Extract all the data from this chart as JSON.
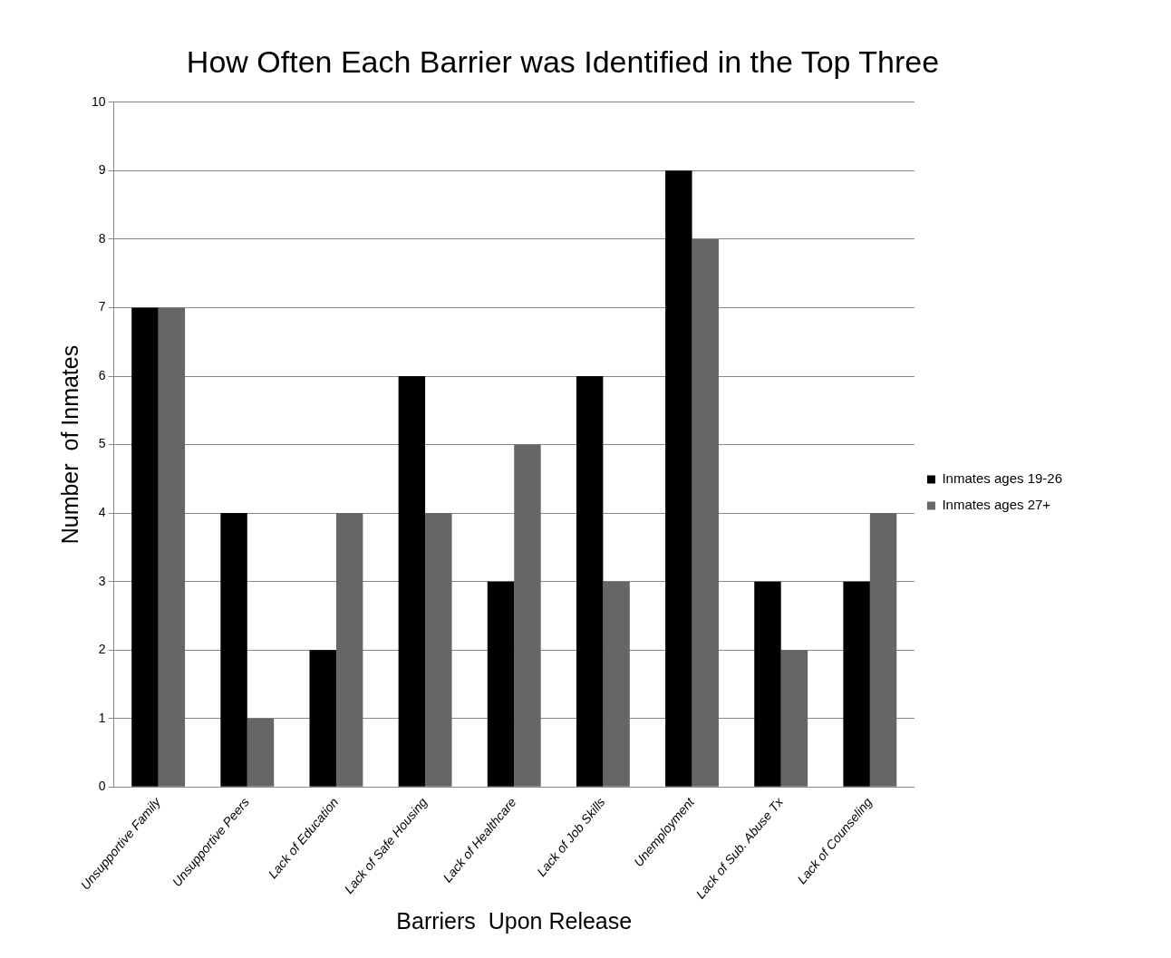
{
  "chart_data": {
    "type": "bar",
    "title": "How Often Each Barrier was Identified in the Top Three",
    "xlabel": "Barriers  Upon Release",
    "ylabel": "Number  of Inmates",
    "categories": [
      "Unsupportive Family",
      "Unsupportive Peers",
      "Lack of Education",
      "Lack of Safe Housing",
      "Lack of Healthcare",
      "Lack of Job Skills",
      "Unemployment",
      "Lack of Sub. Abuse Tx",
      "Lack of Counseling"
    ],
    "series": [
      {
        "name": "Inmates ages 19-26",
        "color": "#000000",
        "values": [
          7,
          4,
          2,
          6,
          3,
          6,
          9,
          3,
          3
        ]
      },
      {
        "name": "Inmates ages 27+",
        "color": "#666666",
        "values": [
          7,
          1,
          4,
          4,
          5,
          3,
          8,
          2,
          4
        ]
      }
    ],
    "ylim": [
      0,
      10
    ],
    "yticks": [
      0,
      1,
      2,
      3,
      4,
      5,
      6,
      7,
      8,
      9,
      10
    ],
    "grid": "y",
    "legend": "right"
  }
}
